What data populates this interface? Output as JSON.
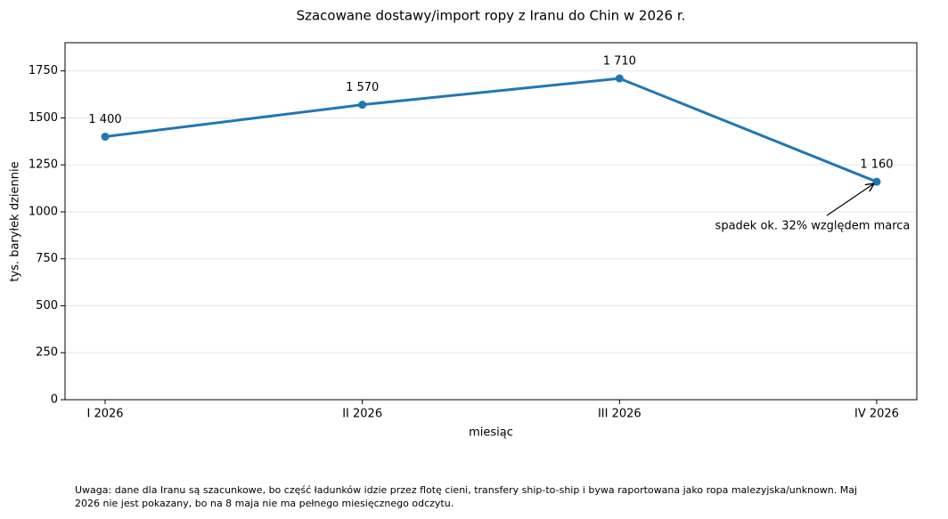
{
  "chart_data": {
    "type": "line",
    "title": "Szacowane dostawy/import ropy z Iranu do Chin w 2026 r.",
    "xlabel": "miesiąc",
    "ylabel": "tys. baryłek dziennie",
    "categories": [
      "I 2026",
      "II 2026",
      "III 2026",
      "IV 2026"
    ],
    "series": [
      {
        "name": "Iran",
        "color": "#1f77b4",
        "values": [
          1400,
          1570,
          1710,
          1160
        ],
        "value_labels": [
          "1 400",
          "1 570",
          "1 710",
          "1 160"
        ]
      }
    ],
    "ylim": [
      0,
      1900
    ],
    "yticks": [
      0,
      250,
      500,
      750,
      1000,
      1250,
      1500,
      1750
    ],
    "grid": true,
    "annotation": "spadek ok. 32% względem marca",
    "note": [
      "Uwaga: dane dla Iranu są szacunkowe, bo część ładunków idzie przez flotę cieni, transfery ship-to-ship i bywa raportowana jako ropa malezyjska/unknown. Maj",
      "2026 nie jest pokazany, bo na 8 maja nie ma pełnego miesięcznego odczytu."
    ]
  }
}
